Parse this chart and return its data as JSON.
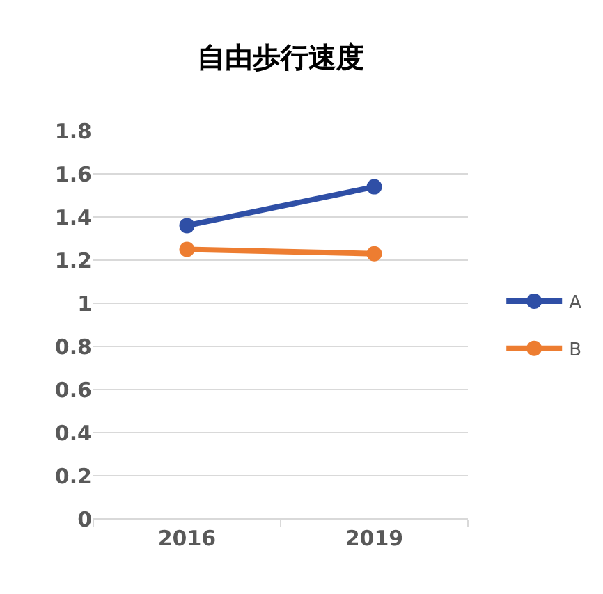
{
  "chart_data": {
    "type": "line",
    "title": "自由歩行速度",
    "categories": [
      "2016",
      "2019"
    ],
    "series": [
      {
        "name": "A",
        "color": "#2f4fa6",
        "values": [
          1.36,
          1.54
        ]
      },
      {
        "name": "B",
        "color": "#ed7d31",
        "values": [
          1.25,
          1.23
        ]
      }
    ],
    "ylim": [
      0,
      1.8
    ],
    "yticks": [
      0,
      0.2,
      0.4,
      0.6,
      0.8,
      1,
      1.2,
      1.4,
      1.6,
      1.8
    ],
    "grid": "y",
    "legend": "right",
    "marker": "circle",
    "line_style": "solid"
  }
}
